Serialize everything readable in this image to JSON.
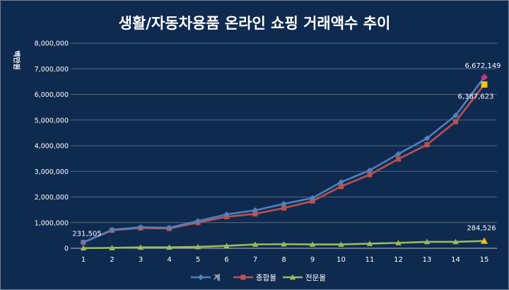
{
  "chart_data": {
    "type": "line",
    "title": "생활/자동차용품 온라인 쇼핑 거래액수 추이",
    "xlabel": "",
    "ylabel": "백만원",
    "x": [
      1,
      2,
      3,
      4,
      5,
      6,
      7,
      8,
      9,
      10,
      11,
      12,
      13,
      14,
      15
    ],
    "ylim": [
      0,
      8000000
    ],
    "yticks": [
      0,
      1000000,
      2000000,
      3000000,
      4000000,
      5000000,
      6000000,
      7000000,
      8000000
    ],
    "ytick_labels": [
      "0",
      "1,000,000",
      "2,000,000",
      "3,000,000",
      "4,000,000",
      "5,000,000",
      "6,000,000",
      "7,000,000",
      "8,000,000"
    ],
    "grid": true,
    "legend_position": "bottom",
    "series": [
      {
        "name": "계",
        "color": "#4f81bd",
        "marker": "diamond",
        "values": [
          231505,
          720000,
          820000,
          800000,
          1060000,
          1320000,
          1480000,
          1730000,
          1960000,
          2580000,
          3040000,
          3680000,
          4290000,
          5180000,
          6672149
        ]
      },
      {
        "name": "종합몰",
        "color": "#c0504d",
        "marker": "square",
        "values": [
          231505,
          700000,
          790000,
          770000,
          1000000,
          1230000,
          1340000,
          1570000,
          1840000,
          2410000,
          2870000,
          3480000,
          4040000,
          4940000,
          6387623
        ]
      },
      {
        "name": "전문몰",
        "color": "#9bbb59",
        "marker": "triangle",
        "values": [
          5000,
          15000,
          35000,
          35000,
          55000,
          95000,
          150000,
          160000,
          150000,
          150000,
          180000,
          210000,
          250000,
          250000,
          284526
        ]
      }
    ],
    "annotations": [
      {
        "text": "231,505",
        "x": 1,
        "y": 231505,
        "series": 0
      },
      {
        "text": "6,672,149",
        "x": 15,
        "y": 6672149,
        "series": 0
      },
      {
        "text": "6,387,623",
        "x": 15,
        "y": 6387623,
        "series": 1
      },
      {
        "text": "284,526",
        "x": 15,
        "y": 284526,
        "series": 2
      }
    ],
    "highlight_points": [
      {
        "x": 15,
        "y": 6672149,
        "color": "#c0397b",
        "shape": "diamond"
      },
      {
        "x": 15,
        "y": 6387623,
        "color": "#f5c400",
        "shape": "square"
      },
      {
        "x": 15,
        "y": 284526,
        "color": "#f5c400",
        "shape": "triangle"
      }
    ]
  }
}
